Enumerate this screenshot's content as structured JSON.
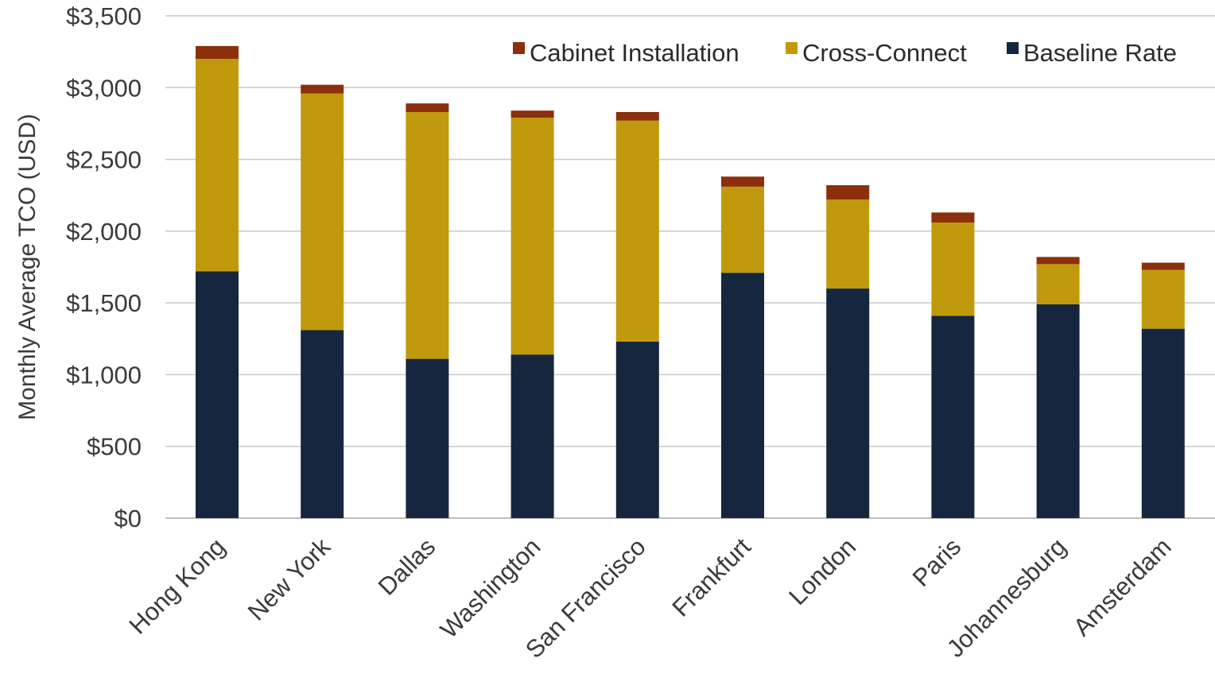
{
  "chart_data": {
    "type": "bar",
    "stacked": true,
    "ylabel": "Monthly Average TCO (USD)",
    "xlabel": "",
    "ylim": [
      0,
      3500
    ],
    "yticks": [
      0,
      500,
      1000,
      1500,
      2000,
      2500,
      3000,
      3500
    ],
    "ytick_labels": [
      "$0",
      "$500",
      "$1,000",
      "$1,500",
      "$2,000",
      "$2,500",
      "$3,000",
      "$3,500"
    ],
    "grid": true,
    "legend_position": "top-right",
    "categories": [
      "Hong Kong",
      "New York",
      "Dallas",
      "Washington",
      "San Francisco",
      "Frankfurt",
      "London",
      "Paris",
      "Johannesburg",
      "Amsterdam"
    ],
    "series": [
      {
        "name": "Baseline Rate",
        "color": "#16263e",
        "values": [
          1720,
          1310,
          1110,
          1140,
          1230,
          1710,
          1600,
          1410,
          1490,
          1320
        ]
      },
      {
        "name": "Cross-Connect",
        "color": "#c1990c",
        "values": [
          1480,
          1650,
          1720,
          1650,
          1540,
          600,
          620,
          650,
          280,
          410
        ]
      },
      {
        "name": "Cabinet Installation",
        "color": "#8b2f0c",
        "values": [
          90,
          60,
          60,
          50,
          60,
          70,
          100,
          70,
          50,
          50
        ]
      }
    ],
    "legend_order": [
      "Cabinet Installation",
      "Cross-Connect",
      "Baseline Rate"
    ]
  }
}
